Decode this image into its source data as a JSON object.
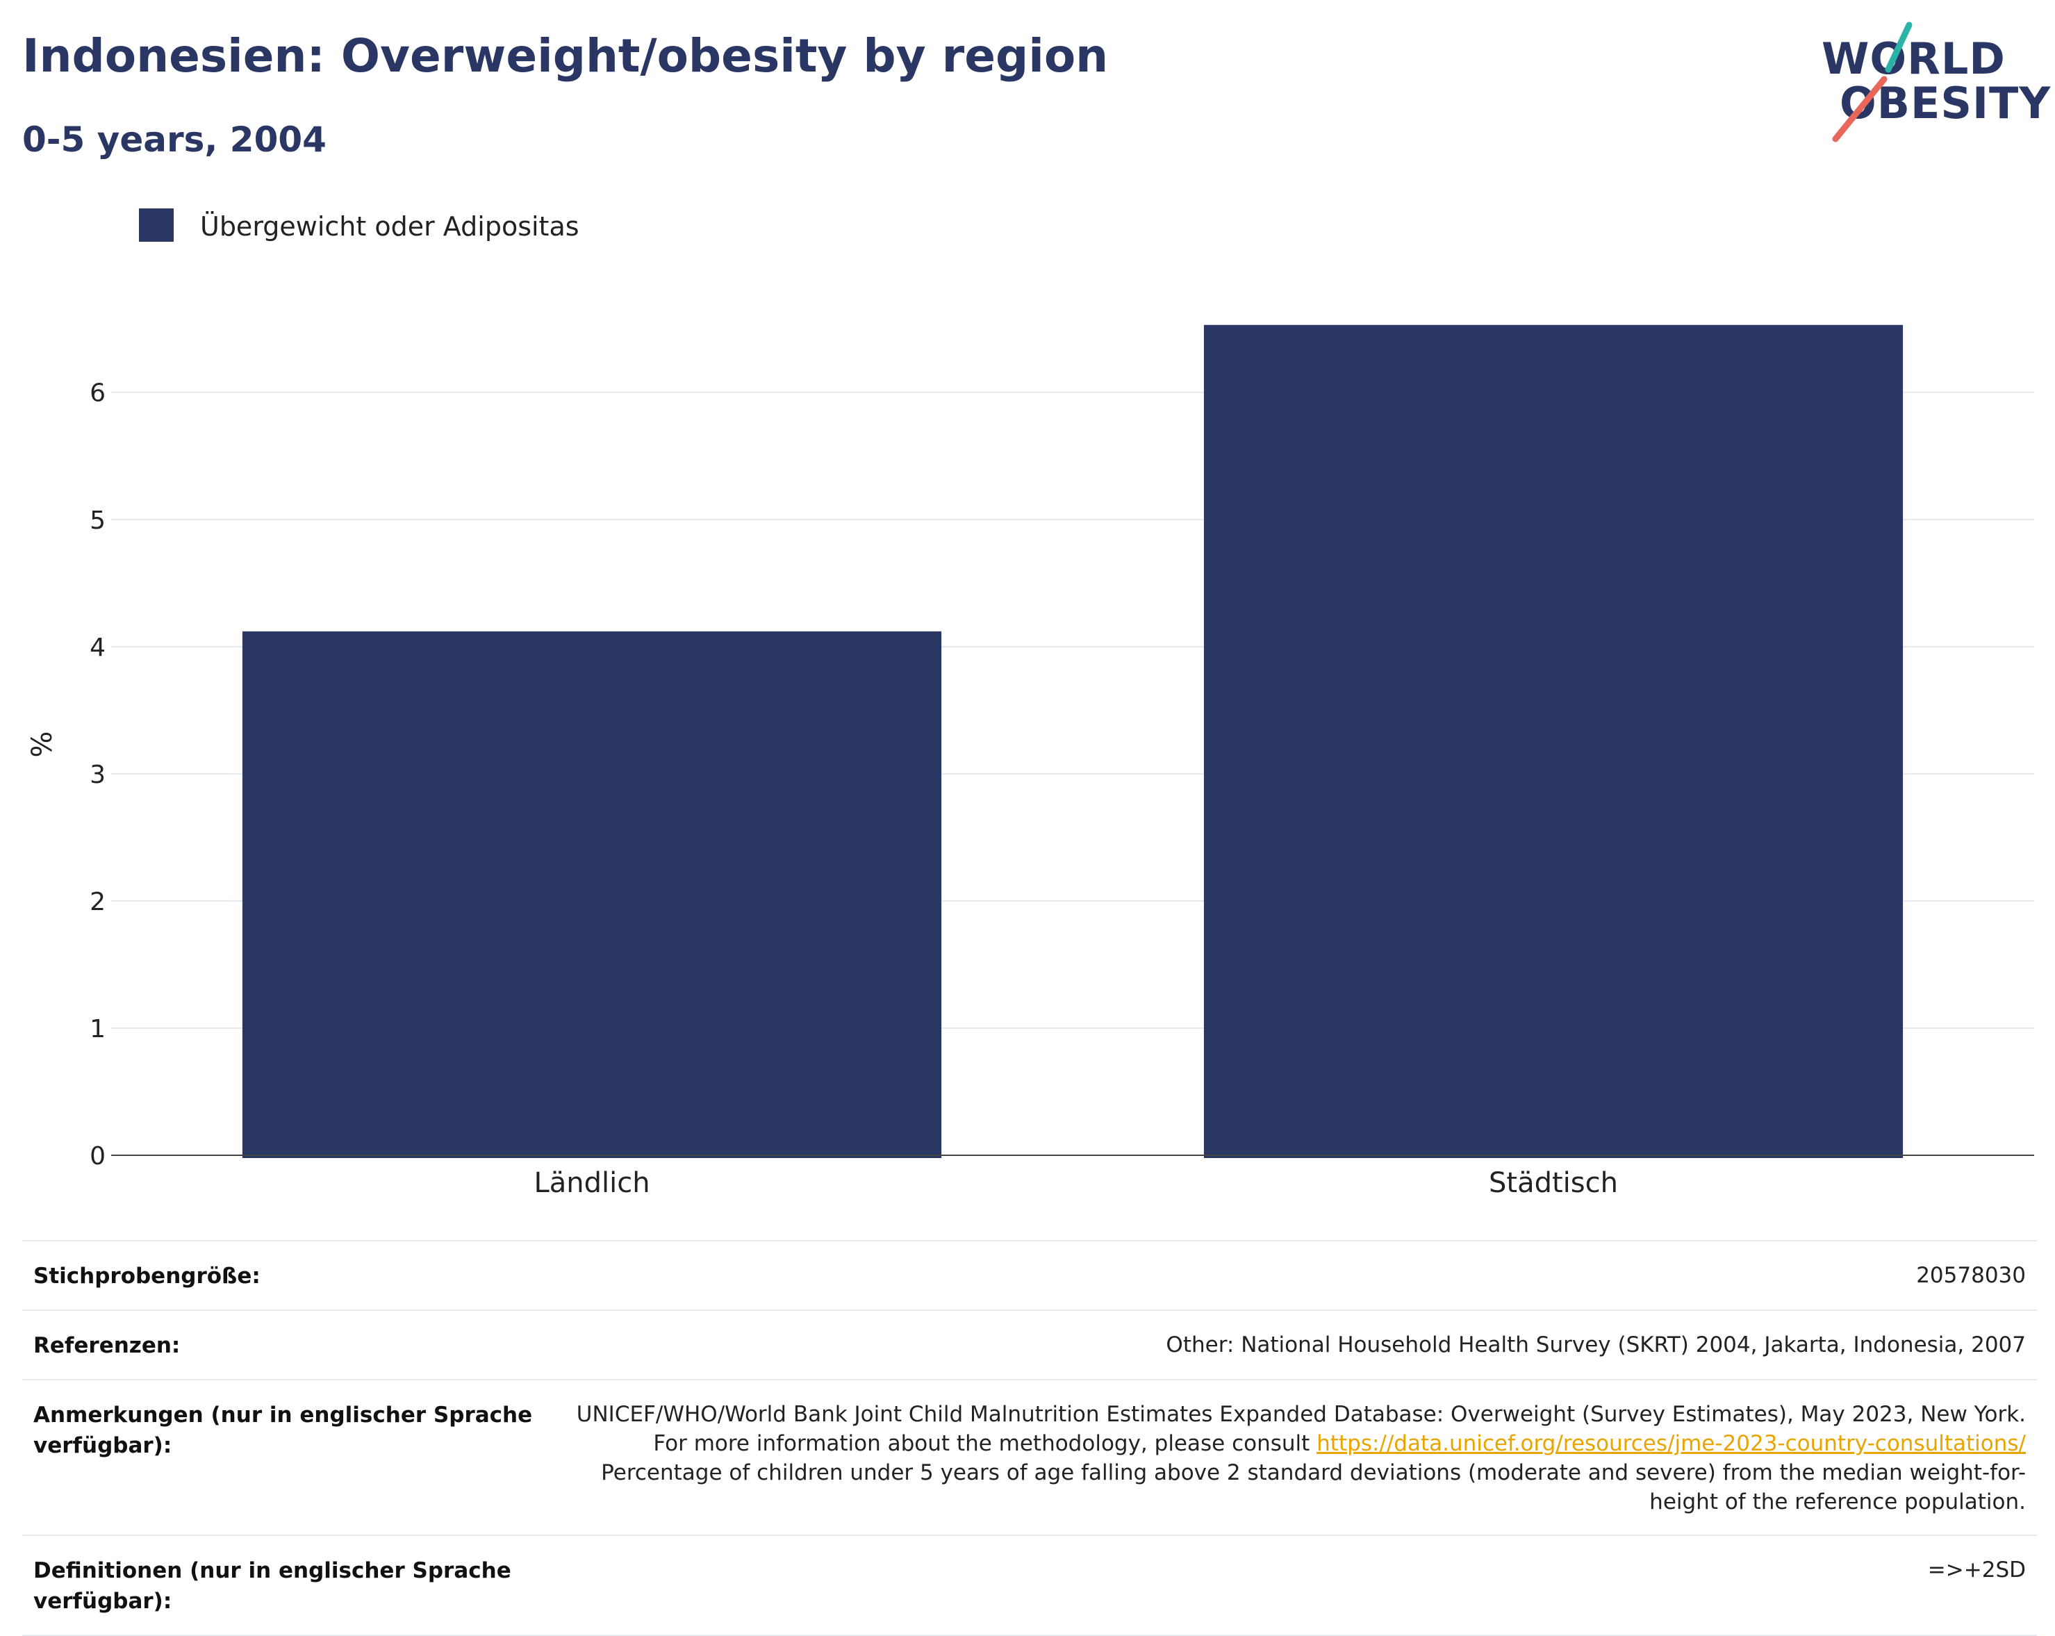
{
  "header": {
    "title": "Indonesien: Overweight/obesity by region",
    "subtitle": "0-5 years, 2004"
  },
  "logo": {
    "line1": "WORLD",
    "line2": "OBESITY",
    "colors": {
      "text": "#2a3663",
      "stroke_top": "#2bb3a8",
      "stroke_bottom": "#e8675a"
    }
  },
  "legend": {
    "label": "Übergewicht oder Adipositas",
    "color": "#2a3663"
  },
  "chart_data": {
    "type": "bar",
    "categories": [
      "Ländlich",
      "Städtisch"
    ],
    "series": [
      {
        "name": "Übergewicht oder Adipositas",
        "values": [
          4.12,
          6.53
        ],
        "color": "#2a3663"
      }
    ],
    "ylabel": "%",
    "xlabel": "",
    "ylim": [
      0,
      6.9
    ],
    "yticks": [
      0,
      1,
      2,
      3,
      4,
      5,
      6
    ],
    "grid": true,
    "legend_position": "top-left"
  },
  "info": {
    "sample_size": {
      "label": "Stichprobengröße:",
      "value": "20578030"
    },
    "references": {
      "label": "Referenzen:",
      "value": "Other: National Household Health Survey (SKRT) 2004, Jakarta, Indonesia, 2007"
    },
    "notes": {
      "label": "Anmerkungen (nur in englischer Sprache verfügbar):",
      "text_before": "UNICEF/WHO/World Bank Joint Child Malnutrition Estimates Expanded Database: Overweight (Survey Estimates), May 2023, New York. For more information about the methodology, please consult ",
      "link": "https://data.unicef.org/resources/jme-2023-country-consultations/",
      "text_after": " Percentage of children under 5 years of age falling above 2 standard deviations (moderate and severe) from the median weight-for-height of the reference population."
    },
    "definitions": {
      "label": "Definitionen (nur in englischer Sprache verfügbar):",
      "value": "=>+2SD"
    }
  }
}
